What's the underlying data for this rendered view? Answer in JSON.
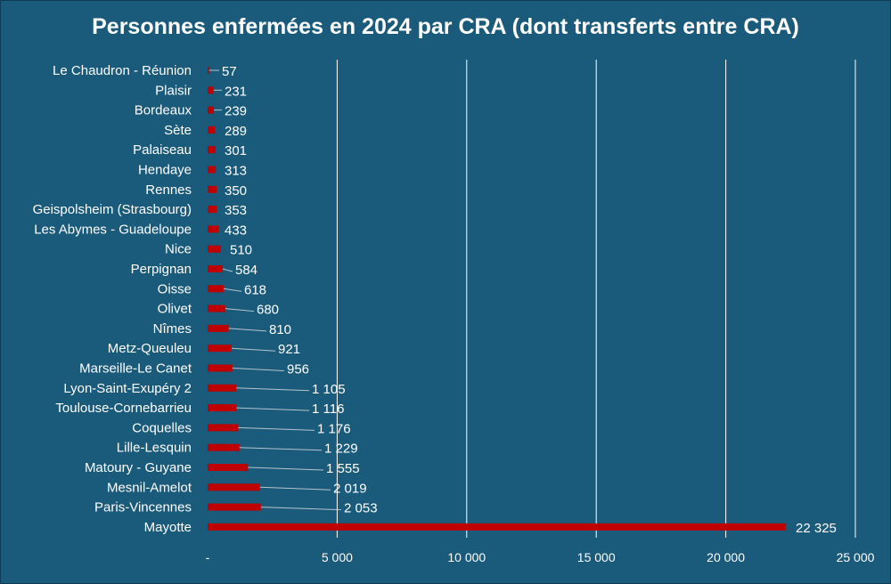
{
  "chart_data": {
    "type": "bar",
    "orientation": "horizontal",
    "title": "Personnes enfermées en 2024 par CRA (dont transferts entre CRA)",
    "xlabel": "",
    "ylabel": "",
    "xlim": [
      0,
      25000
    ],
    "grid": true,
    "legend": "none",
    "categories": [
      "Le Chaudron - Réunion",
      "Plaisir",
      "Bordeaux",
      "Sète",
      "Palaiseau",
      "Hendaye",
      "Rennes",
      "Geispolsheim (Strasbourg)",
      "Les Abymes - Guadeloupe",
      "Nice",
      "Perpignan",
      "Oisse",
      "Olivet",
      "Nîmes",
      "Metz-Queuleu",
      "Marseille-Le Canet",
      "Lyon-Saint-Exupéry 2",
      "Toulouse-Cornebarrieu",
      "Coquelles",
      "Lille-Lesquin",
      "Matoury - Guyane",
      "Mesnil-Amelot",
      "Paris-Vincennes",
      "Mayotte"
    ],
    "values": [
      57,
      231,
      239,
      289,
      301,
      313,
      350,
      353,
      433,
      510,
      584,
      618,
      680,
      810,
      921,
      956,
      1105,
      1116,
      1176,
      1229,
      1555,
      2019,
      2053,
      22325
    ],
    "data_labels": [
      "57",
      "231",
      "239",
      "289",
      "301",
      "313",
      "350",
      "353",
      "433",
      "510",
      "584",
      "618",
      "680",
      "810",
      "921",
      "956",
      "1 105",
      "1 116",
      "1 176",
      "1 229",
      "1 555",
      "2 019",
      "2 053",
      "22 325"
    ],
    "x_ticks": [
      0,
      5000,
      10000,
      15000,
      20000,
      25000
    ],
    "x_tick_labels": [
      "-",
      "5 000",
      "10 000",
      "15 000",
      "20 000",
      "25 000"
    ],
    "colors": {
      "background": "#1a5a7a",
      "bar": "#c00000",
      "grid": "#ffffff",
      "leader": "#b4c4cc",
      "text": "#ffffff"
    }
  }
}
